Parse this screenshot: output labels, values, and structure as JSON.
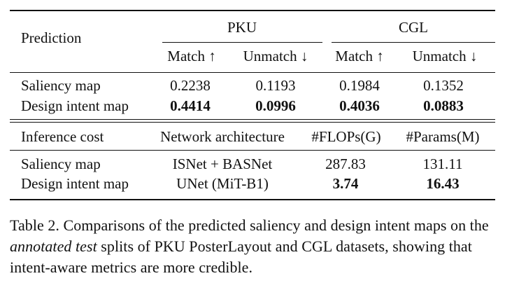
{
  "table1": {
    "header_prediction": "Prediction",
    "groups": [
      "PKU",
      "CGL"
    ],
    "subheaders": [
      "Match ↑",
      "Unmatch ↓",
      "Match ↑",
      "Unmatch ↓"
    ],
    "rows": [
      {
        "label": "Saliency map",
        "values": [
          "0.2238",
          "0.1193",
          "0.1984",
          "0.1352"
        ]
      },
      {
        "label": "Design intent map",
        "values": [
          "0.4414",
          "0.0996",
          "0.4036",
          "0.0883"
        ]
      }
    ]
  },
  "table2": {
    "headers": [
      "Inference cost",
      "Network architecture",
      "#FLOPs(G)",
      "#Params(M)"
    ],
    "rows": [
      {
        "label": "Saliency map",
        "architecture": "ISNet + BASNet",
        "flops": "287.83",
        "params": "131.11"
      },
      {
        "label": "Design intent map",
        "architecture": "UNet (MiT-B1)",
        "flops": "3.74",
        "params": "16.43"
      }
    ]
  },
  "caption": {
    "part1": "Table 2. Comparisons of the predicted saliency and design intent maps on the ",
    "emph": "annotated test",
    "part2": " splits of PKU PosterLayout and CGL datasets, showing that intent-aware metrics are more credible."
  }
}
